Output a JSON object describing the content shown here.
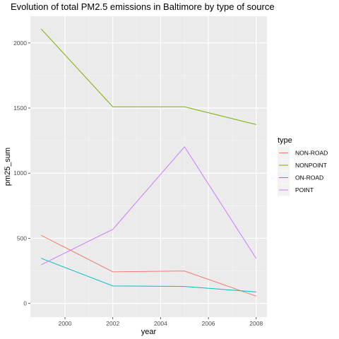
{
  "chart_data": {
    "type": "line",
    "title": "Evolution of total PM2.5 emissions in Baltimore by type of source",
    "xlabel": "year",
    "ylabel": "pm25_sum",
    "x": [
      1999,
      2002,
      2005,
      2008
    ],
    "xlim": [
      1998.55,
      2008.45
    ],
    "ylim": [
      -105,
      2205
    ],
    "x_ticks": [
      2000,
      2002,
      2004,
      2006,
      2008
    ],
    "x_tick_labels": [
      "2000",
      "2002",
      "2004",
      "2006",
      "2008"
    ],
    "y_ticks": [
      0,
      500,
      1000,
      1500,
      2000
    ],
    "y_tick_labels": [
      "0",
      "500",
      "1000",
      "1500",
      "2000"
    ],
    "grid": true,
    "legend": {
      "title": "type",
      "position": "right"
    },
    "series": [
      {
        "name": "NON-ROAD",
        "color": "#F8766D",
        "values": [
          522.94,
          242.66,
          248.93,
          55.82
        ]
      },
      {
        "name": "NONPOINT",
        "color": "#7CAE00",
        "values": [
          2107.63,
          1509.5,
          1509.5,
          1373.21
        ]
      },
      {
        "name": "ON-ROAD",
        "color": "#00BFC4",
        "values": [
          346.82,
          134.31,
          130.43,
          88.28
        ]
      },
      {
        "name": "POINT",
        "color": "#C77CFF",
        "values": [
          296.8,
          569.26,
          1202.49,
          344.98
        ]
      }
    ]
  }
}
